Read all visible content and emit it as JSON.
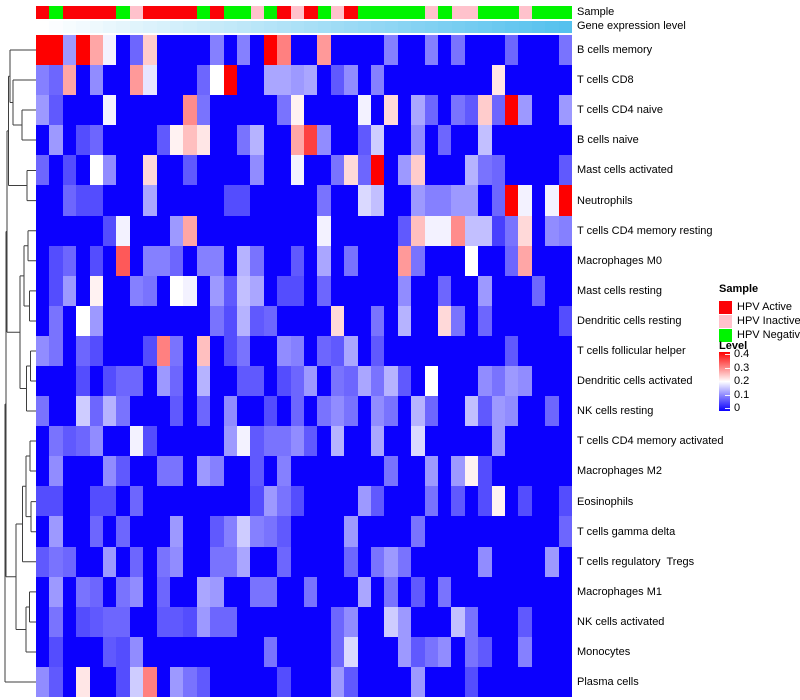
{
  "annotations": {
    "sample_label": "Sample",
    "expression_label": "Gene expression level",
    "sample_states": [
      "R",
      "G",
      "R",
      "R",
      "R",
      "R",
      "G",
      "P",
      "R",
      "R",
      "R",
      "R",
      "G",
      "R",
      "G",
      "G",
      "P",
      "G",
      "R",
      "P",
      "R",
      "G",
      "P",
      "R",
      "G",
      "G",
      "G",
      "G",
      "G",
      "P",
      "G",
      "P",
      "P",
      "G",
      "G",
      "G",
      "P",
      "G",
      "G",
      "G"
    ],
    "sample_colors": {
      "R": "#fb0207",
      "P": "#ffc2cc",
      "G": "#00f400"
    },
    "expression_gradient": {
      "start": "#ffffff",
      "end": "#55c1ee"
    }
  },
  "legend": {
    "sample_title": "Sample",
    "sample_items": [
      {
        "label": "HPV Active",
        "color": "#fb0207"
      },
      {
        "label": "HPV Inactive",
        "color": "#ffc2cc"
      },
      {
        "label": "HPV Negative",
        "color": "#00f400"
      }
    ],
    "level_title": "Level",
    "level_ticks": [
      "0.4",
      "0.3",
      "0.2",
      "0.1",
      "0"
    ],
    "level_colors": {
      "high": "#fe0000",
      "mid": "#ffffff",
      "low": "#0b00fe"
    }
  },
  "chart_data": {
    "type": "heatmap",
    "title": "",
    "colormap": "blue-white-red",
    "value_range": [
      0,
      0.4
    ],
    "row_dendrogram": true,
    "n_columns": 40,
    "column_annotation_sample": [
      "R",
      "G",
      "R",
      "R",
      "R",
      "R",
      "G",
      "P",
      "R",
      "R",
      "R",
      "R",
      "G",
      "R",
      "G",
      "G",
      "P",
      "G",
      "R",
      "P",
      "R",
      "G",
      "P",
      "R",
      "G",
      "G",
      "G",
      "G",
      "G",
      "P",
      "G",
      "P",
      "P",
      "G",
      "G",
      "G",
      "P",
      "G",
      "G",
      "G"
    ],
    "column_annotation_expression": "monotonic gradient, low (white) at left to high (sky blue) at right",
    "rows": [
      "B cells memory",
      "T cells CD8",
      "T cells CD4 naive",
      "B cells naive",
      "Mast cells activated",
      "Neutrophils",
      "T cells CD4 memory resting",
      "Macrophages M0",
      "Mast cells resting",
      "Dendritic cells resting",
      "T cells follicular helper",
      "Dendritic cells activated",
      "NK cells resting",
      "T cells CD4 memory activated",
      "Macrophages M2",
      "Eosinophils",
      "T cells gamma delta",
      "T cells regulatory  Tregs",
      "Macrophages M1",
      "NK cells activated",
      "Monocytes",
      "Plasma cells"
    ],
    "matrix": [
      [
        0.42,
        0.42,
        0.12,
        0.4,
        0.27,
        0.19,
        0,
        0.08,
        0.24,
        0,
        0,
        0,
        0,
        0.1,
        0,
        0.1,
        0,
        0.42,
        0.3,
        0,
        0,
        0.28,
        0,
        0,
        0,
        0,
        0.1,
        0,
        0,
        0.1,
        0,
        0.09,
        0,
        0,
        0,
        0.08,
        0,
        0,
        0,
        0.09
      ],
      [
        0.1,
        0.08,
        0.27,
        0,
        0.11,
        0,
        0,
        0.28,
        0.18,
        0,
        0,
        0,
        0.08,
        0.2,
        0.4,
        0,
        0,
        0.13,
        0.13,
        0.12,
        0.13,
        0,
        0.07,
        0.11,
        0,
        0.1,
        0,
        0,
        0,
        0,
        0,
        0,
        0,
        0,
        0.22,
        0,
        0,
        0,
        0,
        0
      ],
      [
        0.12,
        0.07,
        0,
        0,
        0,
        0.19,
        0,
        0,
        0,
        0,
        0,
        0.29,
        0.09,
        0,
        0,
        0,
        0,
        0,
        0.09,
        0.21,
        0,
        0,
        0,
        0,
        0.19,
        0,
        0.23,
        0,
        0.13,
        0.08,
        0,
        0.09,
        0.07,
        0.24,
        0.08,
        0.42,
        0.12,
        0,
        0,
        0.12
      ],
      [
        0,
        0.12,
        0,
        0.06,
        0.08,
        0,
        0,
        0,
        0,
        0.07,
        0.21,
        0.25,
        0.22,
        0,
        0,
        0.09,
        0.14,
        0,
        0,
        0.27,
        0.35,
        0.11,
        0,
        0,
        0.07,
        0.16,
        0,
        0,
        0.11,
        0,
        0.08,
        0,
        0,
        0.15,
        0,
        0,
        0,
        0,
        0,
        0
      ],
      [
        0.08,
        0,
        0.06,
        0,
        0.2,
        0.11,
        0,
        0,
        0.23,
        0,
        0,
        0.07,
        0,
        0,
        0,
        0,
        0.11,
        0,
        0,
        0.19,
        0,
        0,
        0.09,
        0.23,
        0.08,
        0.42,
        0,
        0.12,
        0.24,
        0,
        0,
        0,
        0.14,
        0.09,
        0.08,
        0,
        0,
        0,
        0,
        0.07
      ],
      [
        0,
        0,
        0.08,
        0.06,
        0.06,
        0,
        0,
        0,
        0.13,
        0,
        0,
        0,
        0,
        0,
        0.06,
        0.06,
        0,
        0,
        0,
        0,
        0,
        0.09,
        0,
        0,
        0.17,
        0.15,
        0,
        0,
        0.12,
        0.1,
        0.1,
        0.12,
        0.12,
        0,
        0.08,
        0.42,
        0.19,
        0,
        0.19,
        0.42
      ],
      [
        0,
        0,
        0,
        0,
        0,
        0.06,
        0.19,
        0,
        0,
        0,
        0.12,
        0.27,
        0,
        0,
        0,
        0,
        0,
        0,
        0,
        0,
        0,
        0.19,
        0,
        0,
        0,
        0,
        0,
        0.07,
        0.25,
        0.19,
        0.19,
        0.29,
        0.15,
        0.15,
        0.05,
        0.09,
        0.23,
        0,
        0.11,
        0.1
      ],
      [
        0,
        0.06,
        0.08,
        0,
        0.06,
        0,
        0.33,
        0,
        0.1,
        0.1,
        0.08,
        0,
        0.1,
        0.1,
        0,
        0.14,
        0.09,
        0,
        0,
        0.07,
        0,
        0.13,
        0,
        0.09,
        0,
        0,
        0,
        0.28,
        0.09,
        0,
        0,
        0,
        0.2,
        0,
        0,
        0.08,
        0.27,
        0,
        0,
        0
      ],
      [
        0,
        0.06,
        0.12,
        0,
        0.21,
        0,
        0,
        0.1,
        0.09,
        0,
        0.2,
        0.19,
        0,
        0.12,
        0.07,
        0.15,
        0.13,
        0,
        0.06,
        0.06,
        0,
        0.08,
        0,
        0,
        0,
        0,
        0,
        0.11,
        0,
        0,
        0.08,
        0,
        0,
        0.12,
        0,
        0,
        0,
        0.08,
        0,
        0
      ],
      [
        0,
        0.09,
        0,
        0.2,
        0.12,
        0,
        0,
        0,
        0,
        0,
        0,
        0,
        0,
        0.09,
        0.06,
        0.14,
        0.07,
        0.08,
        0,
        0,
        0,
        0,
        0.23,
        0,
        0,
        0.09,
        0,
        0.14,
        0,
        0,
        0.23,
        0.09,
        0,
        0.08,
        0,
        0,
        0,
        0,
        0,
        0.06
      ],
      [
        0.11,
        0.09,
        0,
        0.08,
        0.06,
        0,
        0,
        0,
        0.06,
        0.3,
        0.09,
        0,
        0.25,
        0,
        0.06,
        0.09,
        0,
        0,
        0.11,
        0.1,
        0,
        0.08,
        0.07,
        0.13,
        0,
        0.07,
        0,
        0,
        0,
        0,
        0,
        0,
        0,
        0,
        0,
        0.07,
        0,
        0,
        0,
        0
      ],
      [
        0,
        0,
        0,
        0.06,
        0,
        0.06,
        0.08,
        0.08,
        0,
        0.12,
        0.08,
        0,
        0.14,
        0,
        0,
        0.07,
        0.07,
        0,
        0.06,
        0.08,
        0.12,
        0,
        0.09,
        0.08,
        0.13,
        0.09,
        0.14,
        0.07,
        0,
        0.2,
        0,
        0,
        0,
        0.11,
        0.09,
        0.12,
        0.11,
        0,
        0,
        0
      ],
      [
        0.09,
        0,
        0,
        0.16,
        0.08,
        0.14,
        0.09,
        0,
        0,
        0,
        0.07,
        0,
        0.08,
        0,
        0.11,
        0,
        0,
        0.06,
        0,
        0.08,
        0,
        0.09,
        0.11,
        0.09,
        0,
        0.11,
        0.09,
        0,
        0.14,
        0.08,
        0,
        0,
        0.15,
        0.07,
        0.12,
        0.11,
        0,
        0,
        0.08,
        0
      ],
      [
        0,
        0.09,
        0.07,
        0.08,
        0.11,
        0,
        0,
        0.19,
        0.06,
        0,
        0,
        0,
        0,
        0,
        0.12,
        0.19,
        0.07,
        0.09,
        0.09,
        0.11,
        0.07,
        0,
        0.14,
        0,
        0,
        0.13,
        0,
        0,
        0.17,
        0,
        0,
        0,
        0,
        0,
        0.12,
        0,
        0,
        0,
        0,
        0
      ],
      [
        0,
        0.11,
        0,
        0,
        0,
        0.11,
        0.07,
        0,
        0,
        0.09,
        0.09,
        0,
        0.12,
        0.1,
        0,
        0,
        0.07,
        0,
        0.1,
        0,
        0,
        0,
        0,
        0,
        0,
        0,
        0.09,
        0,
        0,
        0.12,
        0,
        0.12,
        0.21,
        0.06,
        0,
        0,
        0,
        0,
        0,
        0
      ],
      [
        0.06,
        0.06,
        0,
        0,
        0.06,
        0.06,
        0,
        0.08,
        0,
        0,
        0,
        0,
        0,
        0,
        0,
        0,
        0.06,
        0.12,
        0.09,
        0.06,
        0,
        0,
        0,
        0,
        0.12,
        0.07,
        0,
        0,
        0,
        0.09,
        0,
        0.07,
        0,
        0.06,
        0.21,
        0,
        0.06,
        0,
        0,
        0.06
      ],
      [
        0,
        0.12,
        0,
        0,
        0.08,
        0,
        0.08,
        0,
        0,
        0,
        0.12,
        0,
        0,
        0.07,
        0.1,
        0.16,
        0.1,
        0.09,
        0.07,
        0,
        0,
        0,
        0,
        0.12,
        0,
        0,
        0,
        0,
        0.09,
        0,
        0,
        0,
        0,
        0,
        0,
        0,
        0,
        0,
        0,
        0.08
      ],
      [
        0.07,
        0.09,
        0.08,
        0,
        0,
        0.12,
        0,
        0.08,
        0,
        0.09,
        0.11,
        0,
        0,
        0.09,
        0.09,
        0.13,
        0,
        0,
        0.08,
        0,
        0,
        0,
        0,
        0.08,
        0,
        0.09,
        0.12,
        0.09,
        0,
        0,
        0,
        0,
        0,
        0.11,
        0,
        0,
        0,
        0,
        0.12,
        0
      ],
      [
        0,
        0.12,
        0,
        0.09,
        0.08,
        0,
        0.09,
        0.11,
        0,
        0.08,
        0,
        0,
        0.13,
        0.12,
        0,
        0,
        0.09,
        0.09,
        0,
        0,
        0.09,
        0,
        0,
        0,
        0.13,
        0,
        0.09,
        0,
        0.07,
        0,
        0.09,
        0,
        0,
        0,
        0,
        0,
        0,
        0,
        0,
        0
      ],
      [
        0,
        0.09,
        0,
        0.06,
        0.07,
        0.08,
        0.08,
        0,
        0,
        0.07,
        0.07,
        0.06,
        0.12,
        0.08,
        0.08,
        0,
        0,
        0,
        0,
        0,
        0,
        0,
        0.08,
        0.11,
        0,
        0,
        0.16,
        0.12,
        0,
        0,
        0,
        0.15,
        0.09,
        0,
        0,
        0,
        0.07,
        0,
        0,
        0
      ],
      [
        0,
        0.06,
        0,
        0,
        0,
        0.07,
        0.06,
        0.11,
        0,
        0,
        0,
        0,
        0,
        0,
        0,
        0,
        0,
        0.09,
        0,
        0,
        0,
        0,
        0.08,
        0.17,
        0,
        0,
        0,
        0.12,
        0.07,
        0.09,
        0.11,
        0,
        0.09,
        0.07,
        0,
        0,
        0.1,
        0,
        0,
        0
      ],
      [
        0.11,
        0.07,
        0,
        0.22,
        0,
        0,
        0.06,
        0.16,
        0.3,
        0,
        0.12,
        0.09,
        0.07,
        0,
        0,
        0,
        0,
        0,
        0.06,
        0,
        0,
        0,
        0.12,
        0.07,
        0,
        0,
        0,
        0,
        0.12,
        0,
        0,
        0,
        0.06,
        0,
        0,
        0,
        0,
        0,
        0,
        0
      ]
    ]
  }
}
